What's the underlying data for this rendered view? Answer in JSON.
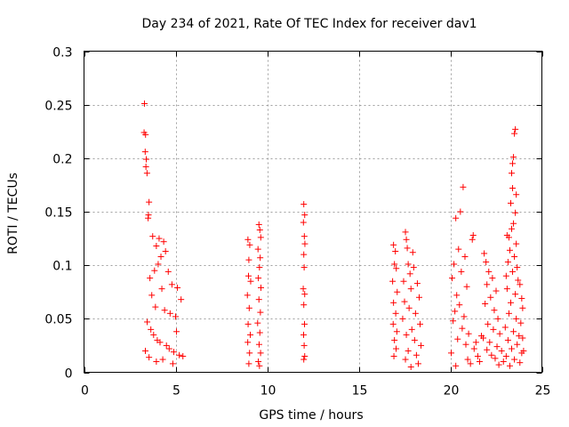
{
  "chart_data": {
    "type": "scatter",
    "title": "Day 234 of 2021, Rate Of TEC Index for receiver dav1",
    "xlabel": "GPS time / hours",
    "ylabel": "ROTI / TECUs",
    "xlim": [
      0,
      25
    ],
    "ylim": [
      0,
      0.3
    ],
    "xticks": [
      0,
      5,
      10,
      15,
      20,
      25
    ],
    "yticks": [
      0,
      0.05,
      0.1,
      0.15,
      0.2,
      0.25,
      0.3
    ],
    "xtick_labels": [
      "0",
      "5",
      "10",
      "15",
      "20",
      "25"
    ],
    "ytick_labels": [
      "0",
      "0.05",
      "0.1",
      "0.15",
      "0.2",
      "0.25",
      "0.3"
    ],
    "grid": true,
    "marker": "+",
    "series": [
      {
        "name": "dav1",
        "color": "#ff0000",
        "points": [
          [
            3.3,
            0.251
          ],
          [
            3.28,
            0.224
          ],
          [
            3.36,
            0.222
          ],
          [
            3.34,
            0.206
          ],
          [
            3.4,
            0.199
          ],
          [
            3.38,
            0.192
          ],
          [
            3.44,
            0.186
          ],
          [
            3.55,
            0.159
          ],
          [
            3.52,
            0.147
          ],
          [
            3.5,
            0.144
          ],
          [
            3.75,
            0.127
          ],
          [
            3.95,
            0.118
          ],
          [
            4.1,
            0.125
          ],
          [
            4.35,
            0.122
          ],
          [
            4.45,
            0.113
          ],
          [
            4.2,
            0.108
          ],
          [
            4.05,
            0.101
          ],
          [
            3.85,
            0.095
          ],
          [
            4.6,
            0.094
          ],
          [
            3.6,
            0.088
          ],
          [
            4.8,
            0.082
          ],
          [
            5.1,
            0.079
          ],
          [
            5.3,
            0.068
          ],
          [
            3.7,
            0.072
          ],
          [
            4.25,
            0.078
          ],
          [
            3.9,
            0.061
          ],
          [
            4.4,
            0.058
          ],
          [
            4.7,
            0.055
          ],
          [
            5.0,
            0.052
          ],
          [
            3.45,
            0.047
          ],
          [
            3.65,
            0.04
          ],
          [
            3.8,
            0.035
          ],
          [
            4.0,
            0.03
          ],
          [
            4.15,
            0.028
          ],
          [
            4.5,
            0.025
          ],
          [
            4.65,
            0.022
          ],
          [
            4.9,
            0.019
          ],
          [
            5.2,
            0.016
          ],
          [
            3.55,
            0.014
          ],
          [
            4.3,
            0.012
          ],
          [
            5.4,
            0.015
          ],
          [
            3.35,
            0.02
          ],
          [
            4.85,
            0.008
          ],
          [
            3.95,
            0.01
          ],
          [
            5.05,
            0.038
          ],
          [
            8.95,
            0.124
          ],
          [
            9.05,
            0.119
          ],
          [
            9.0,
            0.105
          ],
          [
            8.98,
            0.09
          ],
          [
            9.1,
            0.085
          ],
          [
            8.92,
            0.072
          ],
          [
            9.02,
            0.06
          ],
          [
            8.96,
            0.045
          ],
          [
            9.08,
            0.035
          ],
          [
            8.94,
            0.028
          ],
          [
            9.04,
            0.018
          ],
          [
            9.0,
            0.008
          ],
          [
            9.55,
            0.138
          ],
          [
            9.6,
            0.133
          ],
          [
            9.65,
            0.126
          ],
          [
            9.5,
            0.115
          ],
          [
            9.62,
            0.107
          ],
          [
            9.58,
            0.098
          ],
          [
            9.52,
            0.088
          ],
          [
            9.66,
            0.079
          ],
          [
            9.55,
            0.068
          ],
          [
            9.63,
            0.056
          ],
          [
            9.48,
            0.046
          ],
          [
            9.6,
            0.037
          ],
          [
            9.56,
            0.026
          ],
          [
            9.64,
            0.018
          ],
          [
            9.52,
            0.01
          ],
          [
            9.58,
            0.006
          ],
          [
            12.0,
            0.157
          ],
          [
            12.05,
            0.147
          ],
          [
            11.98,
            0.14
          ],
          [
            12.03,
            0.127
          ],
          [
            12.06,
            0.12
          ],
          [
            12.0,
            0.11
          ],
          [
            12.02,
            0.098
          ],
          [
            11.97,
            0.078
          ],
          [
            12.05,
            0.073
          ],
          [
            12.0,
            0.063
          ],
          [
            12.04,
            0.045
          ],
          [
            11.99,
            0.035
          ],
          [
            12.02,
            0.025
          ],
          [
            12.05,
            0.015
          ],
          [
            12.0,
            0.012
          ],
          [
            16.9,
            0.119
          ],
          [
            17.0,
            0.113
          ],
          [
            16.95,
            0.101
          ],
          [
            17.05,
            0.097
          ],
          [
            16.85,
            0.085
          ],
          [
            17.1,
            0.075
          ],
          [
            16.9,
            0.065
          ],
          [
            17.02,
            0.055
          ],
          [
            16.88,
            0.045
          ],
          [
            17.08,
            0.038
          ],
          [
            16.95,
            0.03
          ],
          [
            17.04,
            0.022
          ],
          [
            16.92,
            0.015
          ],
          [
            17.55,
            0.131
          ],
          [
            17.6,
            0.124
          ],
          [
            17.65,
            0.116
          ],
          [
            17.95,
            0.112
          ],
          [
            17.7,
            0.101
          ],
          [
            18.0,
            0.098
          ],
          [
            17.8,
            0.092
          ],
          [
            17.45,
            0.085
          ],
          [
            18.2,
            0.083
          ],
          [
            17.85,
            0.078
          ],
          [
            18.3,
            0.07
          ],
          [
            17.5,
            0.066
          ],
          [
            17.75,
            0.06
          ],
          [
            18.1,
            0.055
          ],
          [
            17.4,
            0.05
          ],
          [
            18.35,
            0.045
          ],
          [
            17.9,
            0.04
          ],
          [
            17.6,
            0.035
          ],
          [
            18.05,
            0.03
          ],
          [
            18.4,
            0.025
          ],
          [
            17.7,
            0.02
          ],
          [
            18.15,
            0.016
          ],
          [
            17.55,
            0.012
          ],
          [
            18.25,
            0.008
          ],
          [
            17.85,
            0.005
          ],
          [
            20.3,
            0.144
          ],
          [
            20.55,
            0.15
          ],
          [
            20.7,
            0.173
          ],
          [
            21.25,
            0.128
          ],
          [
            21.2,
            0.124
          ],
          [
            20.45,
            0.115
          ],
          [
            20.8,
            0.108
          ],
          [
            20.2,
            0.101
          ],
          [
            20.6,
            0.094
          ],
          [
            20.1,
            0.088
          ],
          [
            20.9,
            0.08
          ],
          [
            20.35,
            0.072
          ],
          [
            20.5,
            0.063
          ],
          [
            20.25,
            0.057
          ],
          [
            20.75,
            0.052
          ],
          [
            20.15,
            0.048
          ],
          [
            20.65,
            0.041
          ],
          [
            21.0,
            0.036
          ],
          [
            20.4,
            0.031
          ],
          [
            20.85,
            0.026
          ],
          [
            21.3,
            0.022
          ],
          [
            20.05,
            0.018
          ],
          [
            21.5,
            0.015
          ],
          [
            20.95,
            0.012
          ],
          [
            21.1,
            0.008
          ],
          [
            20.3,
            0.006
          ],
          [
            21.6,
            0.01
          ],
          [
            21.4,
            0.028
          ],
          [
            21.7,
            0.034
          ],
          [
            21.85,
            0.111
          ],
          [
            21.95,
            0.103
          ],
          [
            22.1,
            0.094
          ],
          [
            22.3,
            0.088
          ],
          [
            22.0,
            0.082
          ],
          [
            22.5,
            0.076
          ],
          [
            22.2,
            0.07
          ],
          [
            21.9,
            0.064
          ],
          [
            22.4,
            0.058
          ],
          [
            22.6,
            0.05
          ],
          [
            22.05,
            0.045
          ],
          [
            22.35,
            0.04
          ],
          [
            22.7,
            0.036
          ],
          [
            21.8,
            0.032
          ],
          [
            22.15,
            0.028
          ],
          [
            22.55,
            0.024
          ],
          [
            22.8,
            0.02
          ],
          [
            22.25,
            0.016
          ],
          [
            22.45,
            0.013
          ],
          [
            22.9,
            0.01
          ],
          [
            22.65,
            0.007
          ],
          [
            22.0,
            0.021
          ],
          [
            23.55,
            0.227
          ],
          [
            23.5,
            0.223
          ],
          [
            23.45,
            0.201
          ],
          [
            23.4,
            0.195
          ],
          [
            23.35,
            0.186
          ],
          [
            23.6,
            0.166
          ],
          [
            23.4,
            0.172
          ],
          [
            23.3,
            0.158
          ],
          [
            23.55,
            0.149
          ],
          [
            23.45,
            0.139
          ],
          [
            23.35,
            0.134
          ],
          [
            23.2,
            0.126
          ],
          [
            23.6,
            0.12
          ],
          [
            23.25,
            0.114
          ],
          [
            23.5,
            0.108
          ],
          [
            23.15,
            0.103
          ],
          [
            23.65,
            0.098
          ],
          [
            23.4,
            0.094
          ],
          [
            23.05,
            0.09
          ],
          [
            23.7,
            0.086
          ],
          [
            23.8,
            0.082
          ],
          [
            23.1,
            0.078
          ],
          [
            23.55,
            0.073
          ],
          [
            23.9,
            0.069
          ],
          [
            23.3,
            0.065
          ],
          [
            23.95,
            0.06
          ],
          [
            23.2,
            0.055
          ],
          [
            23.6,
            0.05
          ],
          [
            23.85,
            0.046
          ],
          [
            23.0,
            0.042
          ],
          [
            23.45,
            0.038
          ],
          [
            23.75,
            0.034
          ],
          [
            23.15,
            0.03
          ],
          [
            23.65,
            0.026
          ],
          [
            23.35,
            0.022
          ],
          [
            23.9,
            0.018
          ],
          [
            23.05,
            0.015
          ],
          [
            23.5,
            0.012
          ],
          [
            23.8,
            0.009
          ],
          [
            23.25,
            0.006
          ],
          [
            24.0,
            0.02
          ],
          [
            23.95,
            0.032
          ],
          [
            23.1,
            0.128
          ]
        ]
      }
    ]
  }
}
